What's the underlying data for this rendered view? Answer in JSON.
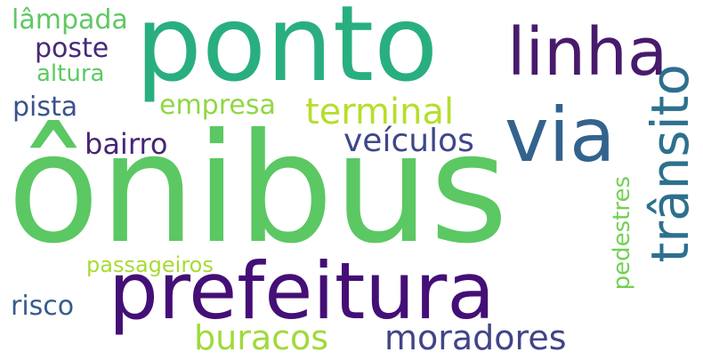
{
  "words": {
    "onibus": {
      "text": "ônibus",
      "color": "#5bc863"
    },
    "ponto": {
      "text": "ponto",
      "color": "#29af7f"
    },
    "prefeitura": {
      "text": "prefeitura",
      "color": "#440f76"
    },
    "linha": {
      "text": "linha",
      "color": "#481a6c"
    },
    "via": {
      "text": "via",
      "color": "#33638d"
    },
    "transito": {
      "text": "trânsito",
      "color": "#2d708e"
    },
    "terminal": {
      "text": "terminal",
      "color": "#b5de2b"
    },
    "veiculos": {
      "text": "veículos",
      "color": "#3f4788"
    },
    "bairro": {
      "text": "bairro",
      "color": "#482475"
    },
    "empresa": {
      "text": "empresa",
      "color": "#8fd744"
    },
    "moradores": {
      "text": "moradores",
      "color": "#414487"
    },
    "buracos": {
      "text": "buracos",
      "color": "#9fda3a"
    },
    "lampada": {
      "text": "lâmpada",
      "color": "#5ec962"
    },
    "poste": {
      "text": "poste",
      "color": "#482878"
    },
    "altura": {
      "text": "altura",
      "color": "#5ec962"
    },
    "pista": {
      "text": "pista",
      "color": "#3b528b"
    },
    "passageiros": {
      "text": "passageiros",
      "color": "#a8db34"
    },
    "risco": {
      "text": "risco",
      "color": "#365c8d"
    },
    "pedestres": {
      "text": "pedestres",
      "color": "#73d056"
    }
  }
}
